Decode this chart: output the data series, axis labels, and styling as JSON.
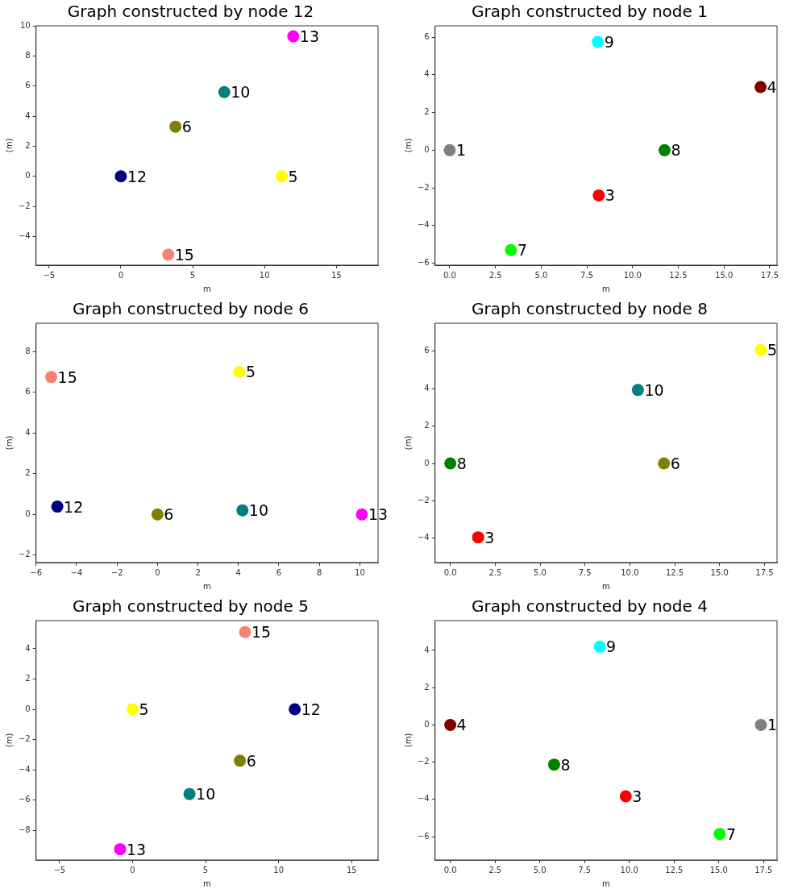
{
  "chart_data": [
    {
      "type": "scatter",
      "title": "Graph constructed by node 12",
      "xlabel": "m",
      "ylabel": "(m)",
      "marker": "circle",
      "xlim": [
        -5.9,
        17.9
      ],
      "ylim": [
        -5.9,
        10
      ],
      "xticks": [
        {
          "value": -5,
          "label": "−5"
        },
        0,
        5,
        10,
        15
      ],
      "yticks": [
        {
          "value": -4,
          "label": "−4"
        },
        {
          "value": -2,
          "label": "−2"
        },
        0,
        2,
        4,
        6,
        8,
        10
      ],
      "series": [
        {
          "name": "13",
          "color": "#ff00ff",
          "x": [
            12.0
          ],
          "values": [
            9.3
          ]
        },
        {
          "name": "10",
          "color": "#008080",
          "x": [
            7.2
          ],
          "values": [
            5.6
          ]
        },
        {
          "name": "6",
          "color": "#808000",
          "x": [
            3.8
          ],
          "values": [
            3.3
          ]
        },
        {
          "name": "12",
          "color": "#000080",
          "x": [
            0
          ],
          "values": [
            0
          ]
        },
        {
          "name": "5",
          "color": "#ffff00",
          "x": [
            11.2
          ],
          "values": [
            0
          ]
        },
        {
          "name": "15",
          "color": "#fa8072",
          "x": [
            3.3
          ],
          "values": [
            -5.2
          ]
        }
      ]
    },
    {
      "type": "scatter",
      "title": "Graph constructed by node 1",
      "xlabel": "m",
      "ylabel": "(m)",
      "marker": "circle",
      "xlim": [
        -0.8,
        17.9
      ],
      "ylim": [
        -6.1,
        6.6
      ],
      "xticks": [
        {
          "value": 0,
          "label": "0.0"
        },
        {
          "value": 2.5,
          "label": "2.5"
        },
        {
          "value": 5,
          "label": "5.0"
        },
        {
          "value": 7.5,
          "label": "7.5"
        },
        {
          "value": 10,
          "label": "10.0"
        },
        {
          "value": 12.5,
          "label": "12.5"
        },
        {
          "value": 15,
          "label": "15.0"
        },
        {
          "value": 17.5,
          "label": "17.5"
        }
      ],
      "yticks": [
        {
          "value": -6,
          "label": "−6"
        },
        {
          "value": -4,
          "label": "−4"
        },
        {
          "value": -2,
          "label": "−2"
        },
        0,
        2,
        4,
        6
      ],
      "series": [
        {
          "name": "9",
          "color": "#00ffff",
          "x": [
            8.1
          ],
          "values": [
            5.75
          ]
        },
        {
          "name": "4",
          "color": "#800000",
          "x": [
            17.0
          ],
          "values": [
            3.35
          ]
        },
        {
          "name": "1",
          "color": "#808080",
          "x": [
            0
          ],
          "values": [
            0
          ]
        },
        {
          "name": "8",
          "color": "#008000",
          "x": [
            11.75
          ],
          "values": [
            0
          ]
        },
        {
          "name": "3",
          "color": "#ff0000",
          "x": [
            8.15
          ],
          "values": [
            -2.4
          ]
        },
        {
          "name": "7",
          "color": "#00ff00",
          "x": [
            3.35
          ],
          "values": [
            -5.3
          ]
        }
      ]
    },
    {
      "type": "scatter",
      "title": "Graph constructed by node 6",
      "xlabel": "m",
      "ylabel": "(m)",
      "marker": "circle",
      "xlim": [
        -6.0,
        10.9
      ],
      "ylim": [
        -2.37,
        9.4
      ],
      "xticks": [
        {
          "value": -6,
          "label": "−6"
        },
        {
          "value": -4,
          "label": "−4"
        },
        {
          "value": -2,
          "label": "−2"
        },
        0,
        2,
        4,
        6,
        8,
        10
      ],
      "yticks": [
        {
          "value": -2,
          "label": "−2"
        },
        0,
        2,
        4,
        6,
        8
      ],
      "series": [
        {
          "name": "15",
          "color": "#fa8072",
          "x": [
            -5.25
          ],
          "values": [
            6.75
          ]
        },
        {
          "name": "5",
          "color": "#ffff00",
          "x": [
            4.05
          ],
          "values": [
            7.0
          ]
        },
        {
          "name": "12",
          "color": "#000080",
          "x": [
            -4.95
          ],
          "values": [
            0.38
          ]
        },
        {
          "name": "6",
          "color": "#808000",
          "x": [
            0
          ],
          "values": [
            0
          ]
        },
        {
          "name": "10",
          "color": "#008080",
          "x": [
            4.2
          ],
          "values": [
            0.2
          ]
        },
        {
          "name": "13",
          "color": "#ff00ff",
          "x": [
            10.1
          ],
          "values": [
            0
          ]
        }
      ]
    },
    {
      "type": "scatter",
      "title": "Graph constructed by node 8",
      "xlabel": "m",
      "ylabel": "(m)",
      "marker": "circle",
      "xlim": [
        -0.85,
        18.2
      ],
      "ylim": [
        -5.3,
        7.5
      ],
      "xticks": [
        {
          "value": 0,
          "label": "0.0"
        },
        {
          "value": 2.5,
          "label": "2.5"
        },
        {
          "value": 5,
          "label": "5.0"
        },
        {
          "value": 7.5,
          "label": "7.5"
        },
        {
          "value": 10,
          "label": "10.0"
        },
        {
          "value": 12.5,
          "label": "12.5"
        },
        {
          "value": 15,
          "label": "15.0"
        },
        {
          "value": 17.5,
          "label": "17.5"
        }
      ],
      "yticks": [
        {
          "value": -4,
          "label": "−4"
        },
        {
          "value": -2,
          "label": "−2"
        },
        0,
        2,
        4,
        6
      ],
      "series": [
        {
          "name": "5",
          "color": "#ffff00",
          "x": [
            17.3
          ],
          "values": [
            6.07
          ]
        },
        {
          "name": "10",
          "color": "#008080",
          "x": [
            10.45
          ],
          "values": [
            3.93
          ]
        },
        {
          "name": "8",
          "color": "#008000",
          "x": [
            0
          ],
          "values": [
            0
          ]
        },
        {
          "name": "6",
          "color": "#808000",
          "x": [
            11.9
          ],
          "values": [
            0
          ]
        },
        {
          "name": "3",
          "color": "#ff0000",
          "x": [
            1.55
          ],
          "values": [
            -3.95
          ]
        }
      ]
    },
    {
      "type": "scatter",
      "title": "Graph constructed by node 5",
      "xlabel": "m",
      "ylabel": "(m)",
      "marker": "circle",
      "xlim": [
        -6.6,
        16.8
      ],
      "ylim": [
        -9.96,
        5.86
      ],
      "xticks": [
        {
          "value": -5,
          "label": "−5"
        },
        0,
        5,
        10,
        15
      ],
      "yticks": [
        {
          "value": -8,
          "label": "−8"
        },
        {
          "value": -6,
          "label": "−6"
        },
        {
          "value": -4,
          "label": "−4"
        },
        {
          "value": -2,
          "label": "−2"
        },
        0,
        2,
        4
      ],
      "series": [
        {
          "name": "15",
          "color": "#fa8072",
          "x": [
            7.7
          ],
          "values": [
            5.1
          ]
        },
        {
          "name": "5",
          "color": "#ffff00",
          "x": [
            0
          ],
          "values": [
            0
          ]
        },
        {
          "name": "12",
          "color": "#000080",
          "x": [
            11.1
          ],
          "values": [
            0
          ]
        },
        {
          "name": "6",
          "color": "#808000",
          "x": [
            7.35
          ],
          "values": [
            -3.4
          ]
        },
        {
          "name": "10",
          "color": "#008080",
          "x": [
            3.9
          ],
          "values": [
            -5.6
          ]
        },
        {
          "name": "13",
          "color": "#ff00ff",
          "x": [
            -0.85
          ],
          "values": [
            -9.25
          ]
        }
      ]
    },
    {
      "type": "scatter",
      "title": "Graph constructed by node 4",
      "xlabel": "m",
      "ylabel": "(m)",
      "marker": "circle",
      "xlim": [
        -0.85,
        18.25
      ],
      "ylim": [
        -7.25,
        5.6
      ],
      "xticks": [
        {
          "value": 0,
          "label": "0.0"
        },
        {
          "value": 2.5,
          "label": "2.5"
        },
        {
          "value": 5,
          "label": "5.0"
        },
        {
          "value": 7.5,
          "label": "7.5"
        },
        {
          "value": 10,
          "label": "10.0"
        },
        {
          "value": 12.5,
          "label": "12.5"
        },
        {
          "value": 15,
          "label": "15.0"
        },
        {
          "value": 17.5,
          "label": "17.5"
        }
      ],
      "yticks": [
        {
          "value": -6,
          "label": "−6"
        },
        {
          "value": -4,
          "label": "−4"
        },
        {
          "value": -2,
          "label": "−2"
        },
        0,
        2,
        4
      ],
      "series": [
        {
          "name": "9",
          "color": "#00ffff",
          "x": [
            8.35
          ],
          "values": [
            4.2
          ]
        },
        {
          "name": "4",
          "color": "#800000",
          "x": [
            0
          ],
          "values": [
            0
          ]
        },
        {
          "name": "1",
          "color": "#808080",
          "x": [
            17.35
          ],
          "values": [
            0
          ]
        },
        {
          "name": "8",
          "color": "#008000",
          "x": [
            5.8
          ],
          "values": [
            -2.13
          ]
        },
        {
          "name": "3",
          "color": "#ff0000",
          "x": [
            9.8
          ],
          "values": [
            -3.83
          ]
        },
        {
          "name": "7",
          "color": "#00ff00",
          "x": [
            15.05
          ],
          "values": [
            -5.85
          ]
        }
      ]
    }
  ]
}
